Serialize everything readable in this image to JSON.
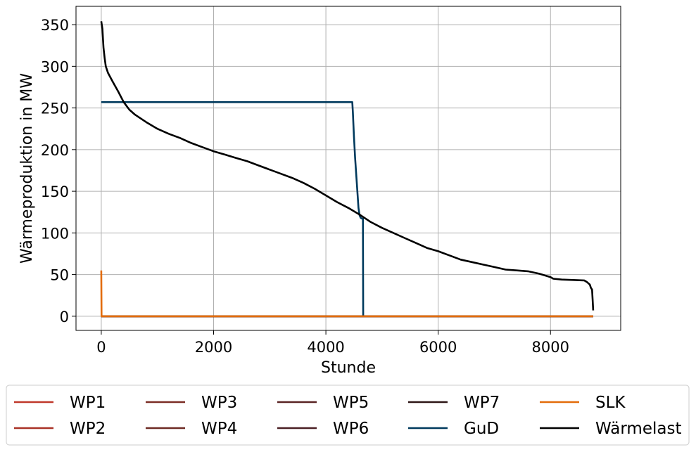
{
  "chart_data": {
    "type": "line",
    "title": "",
    "xlabel": "Stunde",
    "ylabel": "Wärmeproduktion in MW",
    "xlim": [
      -450,
      9250
    ],
    "ylim": [
      -17,
      372
    ],
    "xticks": [
      0,
      2000,
      4000,
      6000,
      8000
    ],
    "yticks": [
      0,
      50,
      100,
      150,
      200,
      250,
      300,
      350
    ],
    "grid": true,
    "legend_position": "bottom",
    "legend_columns": 5,
    "series": [
      {
        "name": "WP1",
        "color": "#c0392b",
        "points": [
          [
            0,
            0
          ],
          [
            8760,
            0
          ]
        ]
      },
      {
        "name": "WP2",
        "color": "#a93226",
        "points": [
          [
            0,
            0
          ],
          [
            8760,
            0
          ]
        ]
      },
      {
        "name": "WP3",
        "color": "#7b2d26",
        "points": [
          [
            0,
            0
          ],
          [
            8760,
            0
          ]
        ]
      },
      {
        "name": "WP4",
        "color": "#6e2a24",
        "points": [
          [
            0,
            0
          ],
          [
            8760,
            0
          ]
        ]
      },
      {
        "name": "WP5",
        "color": "#5a2424",
        "points": [
          [
            0,
            0
          ],
          [
            8760,
            0
          ]
        ]
      },
      {
        "name": "WP6",
        "color": "#4a1f24",
        "points": [
          [
            0,
            0
          ],
          [
            8760,
            0
          ]
        ]
      },
      {
        "name": "WP7",
        "color": "#2e1616",
        "points": [
          [
            0,
            0
          ],
          [
            8760,
            0
          ]
        ]
      },
      {
        "name": "GuD",
        "color": "#003a5d",
        "points": [
          [
            0,
            257
          ],
          [
            4470,
            257
          ],
          [
            4480,
            245
          ],
          [
            4500,
            215
          ],
          [
            4520,
            190
          ],
          [
            4540,
            170
          ],
          [
            4560,
            150
          ],
          [
            4580,
            130
          ],
          [
            4600,
            121
          ],
          [
            4620,
            118
          ],
          [
            4650,
            117
          ],
          [
            4660,
            117
          ],
          [
            4665,
            0
          ]
        ]
      },
      {
        "name": "SLK",
        "color": "#e36c0a",
        "points": [
          [
            0,
            55
          ],
          [
            5,
            0
          ],
          [
            8760,
            0
          ]
        ]
      },
      {
        "name": "Wärmelast",
        "color": "#000000",
        "points": [
          [
            0,
            354
          ],
          [
            20,
            345
          ],
          [
            40,
            322
          ],
          [
            60,
            310
          ],
          [
            80,
            300
          ],
          [
            120,
            292
          ],
          [
            200,
            282
          ],
          [
            300,
            270
          ],
          [
            400,
            257
          ],
          [
            500,
            248
          ],
          [
            600,
            242
          ],
          [
            800,
            233
          ],
          [
            1000,
            225
          ],
          [
            1200,
            219
          ],
          [
            1400,
            214
          ],
          [
            1600,
            208
          ],
          [
            1800,
            203
          ],
          [
            2000,
            198
          ],
          [
            2200,
            194
          ],
          [
            2400,
            190
          ],
          [
            2600,
            186
          ],
          [
            2800,
            181
          ],
          [
            3000,
            176
          ],
          [
            3200,
            171
          ],
          [
            3400,
            166
          ],
          [
            3600,
            160
          ],
          [
            3800,
            153
          ],
          [
            4000,
            145
          ],
          [
            4200,
            137
          ],
          [
            4400,
            130
          ],
          [
            4600,
            122
          ],
          [
            4800,
            113
          ],
          [
            5000,
            106
          ],
          [
            5200,
            100
          ],
          [
            5400,
            94
          ],
          [
            5600,
            88
          ],
          [
            5800,
            82
          ],
          [
            6000,
            78
          ],
          [
            6200,
            73
          ],
          [
            6400,
            68
          ],
          [
            6600,
            65
          ],
          [
            6800,
            62
          ],
          [
            7000,
            59
          ],
          [
            7200,
            56
          ],
          [
            7400,
            55
          ],
          [
            7600,
            54
          ],
          [
            7800,
            51
          ],
          [
            8000,
            47
          ],
          [
            8050,
            45
          ],
          [
            8200,
            44
          ],
          [
            8400,
            43.5
          ],
          [
            8600,
            43
          ],
          [
            8650,
            41
          ],
          [
            8700,
            38
          ],
          [
            8720,
            34
          ],
          [
            8740,
            32
          ],
          [
            8750,
            20
          ],
          [
            8760,
            7
          ]
        ]
      }
    ]
  }
}
